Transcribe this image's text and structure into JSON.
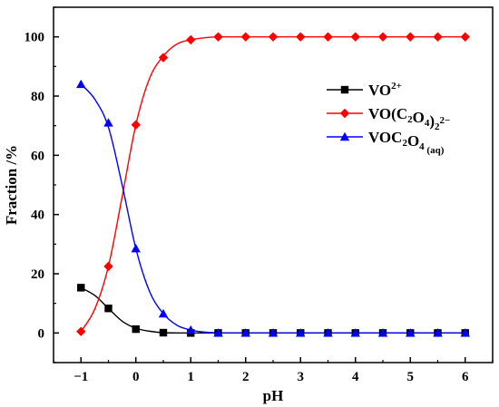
{
  "chart_data": {
    "type": "line",
    "xlabel": "pH",
    "ylabel": "Fraction /%",
    "xlim": [
      -1.5,
      6.5
    ],
    "ylim": [
      -10,
      110
    ],
    "xticks": [
      -1,
      0,
      1,
      2,
      3,
      4,
      5,
      6
    ],
    "xtick_labels": [
      "−1",
      "0",
      "1",
      "2",
      "3",
      "4",
      "5",
      "6"
    ],
    "yticks": [
      0,
      20,
      40,
      60,
      80,
      100
    ],
    "ytick_labels": [
      "0",
      "20",
      "40",
      "60",
      "80",
      "100"
    ],
    "grid": false,
    "legend_position": "top-right",
    "series": [
      {
        "name": "VO2+",
        "label_parts": [
          [
            "VO",
            ""
          ],
          [
            "2+",
            "sup"
          ]
        ],
        "color": "#000000",
        "marker": "square",
        "x": [
          -1,
          -0.5,
          0,
          0.5,
          1,
          1.5,
          2,
          2.5,
          3,
          3.5,
          4,
          4.5,
          5,
          5.5,
          6
        ],
        "y": [
          15.3,
          8.3,
          1.3,
          0.1,
          0,
          0,
          0,
          0,
          0,
          0,
          0,
          0,
          0,
          0,
          0
        ],
        "curve_y": [
          15.3,
          12.7,
          8.3,
          4.0,
          1.6,
          0.6,
          0.1,
          0.02,
          0,
          0,
          0,
          0,
          0,
          0,
          0
        ]
      },
      {
        "name": "VO(C2O4)2 2−",
        "label_parts": [
          [
            "VO(C",
            ""
          ],
          [
            "2",
            "sub"
          ],
          [
            "O",
            ""
          ],
          [
            "4",
            "sub"
          ],
          [
            ")",
            ""
          ],
          [
            "2",
            "sub"
          ],
          [
            "2−",
            "sup"
          ]
        ],
        "color": "#ff0000",
        "marker": "diamond",
        "x": [
          -1,
          -0.5,
          0,
          0.5,
          1,
          1.5,
          2,
          2.5,
          3,
          3.5,
          4,
          4.5,
          5,
          5.5,
          6
        ],
        "y": [
          0.5,
          22.5,
          70.3,
          93.0,
          99.0,
          100,
          100,
          100,
          100,
          100,
          100,
          100,
          100,
          100,
          100
        ],
        "curve_y": [
          0.5,
          8.0,
          22.5,
          46.0,
          70.3,
          86.0,
          93.5,
          97.6,
          99.0,
          99.7,
          100,
          100,
          100,
          100,
          100
        ]
      },
      {
        "name": "VOC2O4 (aq)",
        "label_parts": [
          [
            "VOC",
            ""
          ],
          [
            "2",
            "sub"
          ],
          [
            "O",
            ""
          ],
          [
            "4",
            "sub"
          ],
          [
            " (aq)",
            "sub"
          ]
        ],
        "color": "#0000ff",
        "marker": "triangle",
        "x": [
          -1,
          -0.5,
          0,
          0.5,
          1,
          1.5,
          2,
          2.5,
          3,
          3.5,
          4,
          4.5,
          5,
          5.5,
          6
        ],
        "y": [
          84.0,
          71.0,
          28.5,
          6.5,
          1.0,
          0,
          0,
          0,
          0,
          0,
          0,
          0,
          0,
          0,
          0
        ],
        "curve_y": [
          84.0,
          79.0,
          69.5,
          50.0,
          28.5,
          14.0,
          6.5,
          2.6,
          1.0,
          0.3,
          0.05,
          0,
          0,
          0,
          0
        ]
      }
    ]
  }
}
